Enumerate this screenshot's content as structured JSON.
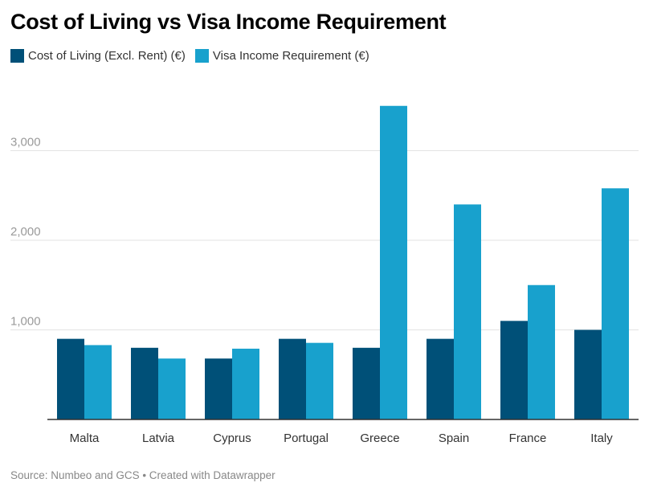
{
  "chart_data": {
    "type": "bar",
    "title": "Cost of Living vs Visa Income Requirement",
    "categories": [
      "Malta",
      "Latvia",
      "Cyprus",
      "Portugal",
      "Greece",
      "Spain",
      "France",
      "Italy"
    ],
    "series": [
      {
        "name": "Cost of Living (Excl. Rent) (€)",
        "color": "#005078",
        "values": [
          900,
          800,
          680,
          900,
          800,
          900,
          1100,
          1000
        ]
      },
      {
        "name": "Visa Income Requirement (€)",
        "color": "#18a1cd",
        "values": [
          830,
          680,
          790,
          855,
          3500,
          2400,
          1500,
          2580
        ]
      }
    ],
    "yticks": [
      {
        "value": 1000,
        "label": "1,000"
      },
      {
        "value": 2000,
        "label": "2,000"
      },
      {
        "value": 3000,
        "label": "3,000"
      }
    ],
    "ylim": [
      0,
      3700
    ],
    "xlabel": "",
    "ylabel": "",
    "grid": true,
    "legend_position": "top-left",
    "source": "Source: Numbeo and GCS • Created with Datawrapper"
  }
}
